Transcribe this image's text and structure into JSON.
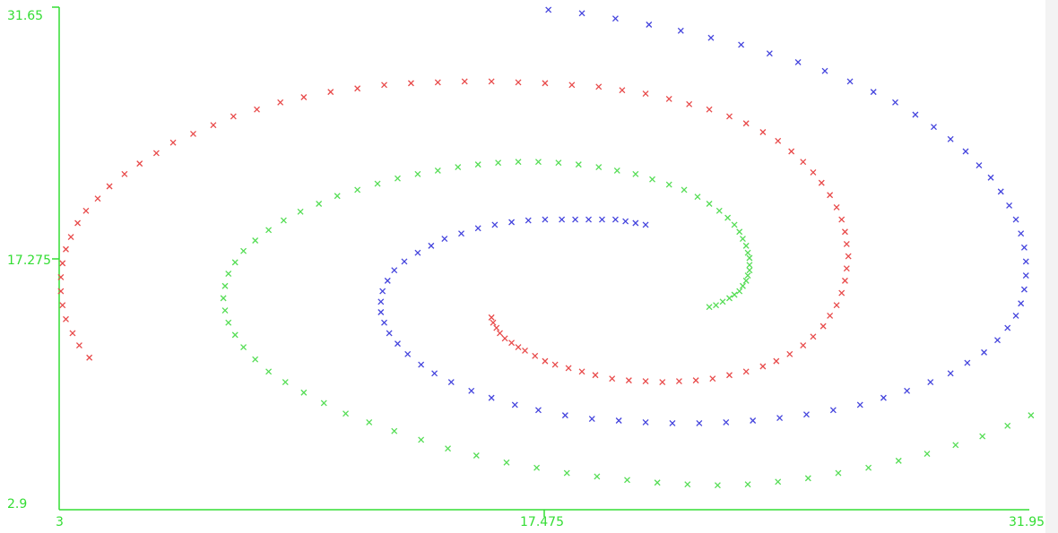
{
  "chart_data": {
    "type": "scatter",
    "title": "",
    "xlabel": "",
    "ylabel": "",
    "xlim": [
      3,
      31.95
    ],
    "ylim": [
      2.9,
      31.65
    ],
    "grid": false,
    "legend": "none",
    "axis_color": "#33dd33",
    "x_ticks": [
      "3",
      "17.475",
      "31.95"
    ],
    "y_ticks": [
      "31.65",
      "17.275",
      "2.9"
    ],
    "marker": "x",
    "series": [
      {
        "color": "#e84a4a",
        "points": [
          [
            15.9,
            13.9
          ],
          [
            15.95,
            13.6
          ],
          [
            16.05,
            13.3
          ],
          [
            16.15,
            13.0
          ],
          [
            16.3,
            12.7
          ],
          [
            16.5,
            12.45
          ],
          [
            16.7,
            12.2
          ],
          [
            16.9,
            12.0
          ],
          [
            17.2,
            11.7
          ],
          [
            17.5,
            11.4
          ],
          [
            17.8,
            11.2
          ],
          [
            18.2,
            11.0
          ],
          [
            18.6,
            10.8
          ],
          [
            19.0,
            10.6
          ],
          [
            19.5,
            10.4
          ],
          [
            20.0,
            10.3
          ],
          [
            20.5,
            10.25
          ],
          [
            21.0,
            10.2
          ],
          [
            21.5,
            10.25
          ],
          [
            22.0,
            10.3
          ],
          [
            22.5,
            10.4
          ],
          [
            23.0,
            10.6
          ],
          [
            23.5,
            10.8
          ],
          [
            24.0,
            11.1
          ],
          [
            24.4,
            11.4
          ],
          [
            24.8,
            11.8
          ],
          [
            25.2,
            12.3
          ],
          [
            25.5,
            12.8
          ],
          [
            25.8,
            13.4
          ],
          [
            26.0,
            14.0
          ],
          [
            26.2,
            14.6
          ],
          [
            26.35,
            15.3
          ],
          [
            26.45,
            16.0
          ],
          [
            26.5,
            16.7
          ],
          [
            26.55,
            17.4
          ],
          [
            26.5,
            18.1
          ],
          [
            26.45,
            18.8
          ],
          [
            26.35,
            19.5
          ],
          [
            26.2,
            20.2
          ],
          [
            26.0,
            20.9
          ],
          [
            25.75,
            21.6
          ],
          [
            25.5,
            22.2
          ],
          [
            25.2,
            22.8
          ],
          [
            24.85,
            23.4
          ],
          [
            24.45,
            24.0
          ],
          [
            24.0,
            24.5
          ],
          [
            23.5,
            25.0
          ],
          [
            23.0,
            25.4
          ],
          [
            22.4,
            25.8
          ],
          [
            21.8,
            26.1
          ],
          [
            21.2,
            26.4
          ],
          [
            20.5,
            26.7
          ],
          [
            19.8,
            26.9
          ],
          [
            19.1,
            27.1
          ],
          [
            18.3,
            27.2
          ],
          [
            17.5,
            27.3
          ],
          [
            16.7,
            27.35
          ],
          [
            15.9,
            27.4
          ],
          [
            15.1,
            27.4
          ],
          [
            14.3,
            27.35
          ],
          [
            13.5,
            27.3
          ],
          [
            12.7,
            27.2
          ],
          [
            11.9,
            27.0
          ],
          [
            11.1,
            26.8
          ],
          [
            10.3,
            26.5
          ],
          [
            9.6,
            26.2
          ],
          [
            8.9,
            25.8
          ],
          [
            8.2,
            25.4
          ],
          [
            7.6,
            24.9
          ],
          [
            7.0,
            24.4
          ],
          [
            6.4,
            23.9
          ],
          [
            5.9,
            23.3
          ],
          [
            5.4,
            22.7
          ],
          [
            4.95,
            22.1
          ],
          [
            4.5,
            21.4
          ],
          [
            4.15,
            20.7
          ],
          [
            3.8,
            20.0
          ],
          [
            3.55,
            19.3
          ],
          [
            3.35,
            18.5
          ],
          [
            3.2,
            17.8
          ],
          [
            3.1,
            17.0
          ],
          [
            3.05,
            16.2
          ],
          [
            3.05,
            15.4
          ],
          [
            3.1,
            14.6
          ],
          [
            3.2,
            13.8
          ],
          [
            3.4,
            13.0
          ],
          [
            3.6,
            12.3
          ],
          [
            3.9,
            11.6
          ]
        ]
      },
      {
        "color": "#4444dd",
        "points": [
          [
            20.5,
            19.2
          ],
          [
            20.2,
            19.3
          ],
          [
            19.9,
            19.4
          ],
          [
            19.6,
            19.5
          ],
          [
            19.2,
            19.5
          ],
          [
            18.8,
            19.5
          ],
          [
            18.4,
            19.5
          ],
          [
            18.0,
            19.5
          ],
          [
            17.5,
            19.5
          ],
          [
            17.0,
            19.45
          ],
          [
            16.5,
            19.35
          ],
          [
            16.0,
            19.2
          ],
          [
            15.5,
            19.0
          ],
          [
            15.0,
            18.7
          ],
          [
            14.5,
            18.4
          ],
          [
            14.1,
            18.0
          ],
          [
            13.7,
            17.6
          ],
          [
            13.3,
            17.1
          ],
          [
            13.0,
            16.6
          ],
          [
            12.8,
            16.0
          ],
          [
            12.65,
            15.4
          ],
          [
            12.6,
            14.8
          ],
          [
            12.6,
            14.2
          ],
          [
            12.7,
            13.6
          ],
          [
            12.85,
            13.0
          ],
          [
            13.1,
            12.4
          ],
          [
            13.4,
            11.8
          ],
          [
            13.8,
            11.2
          ],
          [
            14.2,
            10.7
          ],
          [
            14.7,
            10.2
          ],
          [
            15.3,
            9.7
          ],
          [
            15.9,
            9.3
          ],
          [
            16.6,
            8.9
          ],
          [
            17.3,
            8.6
          ],
          [
            18.1,
            8.3
          ],
          [
            18.9,
            8.1
          ],
          [
            19.7,
            8.0
          ],
          [
            20.5,
            7.9
          ],
          [
            21.3,
            7.85
          ],
          [
            22.1,
            7.85
          ],
          [
            22.9,
            7.9
          ],
          [
            23.7,
            8.0
          ],
          [
            24.5,
            8.15
          ],
          [
            25.3,
            8.35
          ],
          [
            26.1,
            8.6
          ],
          [
            26.9,
            8.9
          ],
          [
            27.6,
            9.3
          ],
          [
            28.3,
            9.7
          ],
          [
            29.0,
            10.2
          ],
          [
            29.6,
            10.7
          ],
          [
            30.1,
            11.3
          ],
          [
            30.6,
            11.9
          ],
          [
            31.0,
            12.6
          ],
          [
            31.3,
            13.3
          ],
          [
            31.55,
            14.0
          ],
          [
            31.7,
            14.7
          ],
          [
            31.8,
            15.5
          ],
          [
            31.85,
            16.3
          ],
          [
            31.85,
            17.1
          ],
          [
            31.8,
            17.9
          ],
          [
            31.7,
            18.7
          ],
          [
            31.55,
            19.5
          ],
          [
            31.35,
            20.3
          ],
          [
            31.1,
            21.1
          ],
          [
            30.8,
            21.9
          ],
          [
            30.45,
            22.6
          ],
          [
            30.05,
            23.4
          ],
          [
            29.6,
            24.1
          ],
          [
            29.1,
            24.8
          ],
          [
            28.55,
            25.5
          ],
          [
            27.95,
            26.2
          ],
          [
            27.3,
            26.8
          ],
          [
            26.6,
            27.4
          ],
          [
            25.85,
            28.0
          ],
          [
            25.05,
            28.5
          ],
          [
            24.2,
            29.0
          ],
          [
            23.35,
            29.5
          ],
          [
            22.45,
            29.9
          ],
          [
            21.55,
            30.3
          ],
          [
            20.6,
            30.65
          ],
          [
            19.6,
            31.0
          ],
          [
            18.6,
            31.3
          ],
          [
            17.6,
            31.5
          ]
        ]
      },
      {
        "color": "#55dd55",
        "points": [
          [
            22.4,
            14.5
          ],
          [
            22.6,
            14.6
          ],
          [
            22.8,
            14.8
          ],
          [
            23.0,
            15.0
          ],
          [
            23.15,
            15.2
          ],
          [
            23.3,
            15.4
          ],
          [
            23.4,
            15.7
          ],
          [
            23.5,
            16.0
          ],
          [
            23.55,
            16.3
          ],
          [
            23.6,
            16.6
          ],
          [
            23.6,
            16.9
          ],
          [
            23.6,
            17.3
          ],
          [
            23.55,
            17.6
          ],
          [
            23.5,
            18.0
          ],
          [
            23.4,
            18.4
          ],
          [
            23.3,
            18.8
          ],
          [
            23.15,
            19.2
          ],
          [
            22.95,
            19.6
          ],
          [
            22.7,
            20.0
          ],
          [
            22.4,
            20.4
          ],
          [
            22.05,
            20.8
          ],
          [
            21.65,
            21.2
          ],
          [
            21.2,
            21.5
          ],
          [
            20.7,
            21.8
          ],
          [
            20.2,
            22.1
          ],
          [
            19.65,
            22.3
          ],
          [
            19.1,
            22.5
          ],
          [
            18.5,
            22.65
          ],
          [
            17.9,
            22.75
          ],
          [
            17.3,
            22.8
          ],
          [
            16.7,
            22.8
          ],
          [
            16.1,
            22.75
          ],
          [
            15.5,
            22.65
          ],
          [
            14.9,
            22.5
          ],
          [
            14.3,
            22.3
          ],
          [
            13.7,
            22.1
          ],
          [
            13.1,
            21.85
          ],
          [
            12.5,
            21.55
          ],
          [
            11.9,
            21.2
          ],
          [
            11.3,
            20.85
          ],
          [
            10.75,
            20.4
          ],
          [
            10.2,
            19.95
          ],
          [
            9.7,
            19.45
          ],
          [
            9.25,
            18.9
          ],
          [
            8.85,
            18.3
          ],
          [
            8.5,
            17.7
          ],
          [
            8.25,
            17.05
          ],
          [
            8.05,
            16.4
          ],
          [
            7.95,
            15.7
          ],
          [
            7.9,
            15.0
          ],
          [
            7.95,
            14.3
          ],
          [
            8.05,
            13.6
          ],
          [
            8.25,
            12.9
          ],
          [
            8.5,
            12.2
          ],
          [
            8.85,
            11.5
          ],
          [
            9.25,
            10.8
          ],
          [
            9.75,
            10.2
          ],
          [
            10.3,
            9.6
          ],
          [
            10.9,
            9.0
          ],
          [
            11.55,
            8.4
          ],
          [
            12.25,
            7.9
          ],
          [
            13.0,
            7.4
          ],
          [
            13.8,
            6.9
          ],
          [
            14.6,
            6.4
          ],
          [
            15.45,
            6.0
          ],
          [
            16.35,
            5.6
          ],
          [
            17.25,
            5.3
          ],
          [
            18.15,
            5.0
          ],
          [
            19.05,
            4.8
          ],
          [
            19.95,
            4.6
          ],
          [
            20.85,
            4.45
          ],
          [
            21.75,
            4.35
          ],
          [
            22.65,
            4.3
          ],
          [
            23.55,
            4.35
          ],
          [
            24.45,
            4.5
          ],
          [
            25.35,
            4.7
          ],
          [
            26.25,
            5.0
          ],
          [
            27.15,
            5.3
          ],
          [
            28.05,
            5.7
          ],
          [
            28.9,
            6.1
          ],
          [
            29.75,
            6.6
          ],
          [
            30.55,
            7.1
          ],
          [
            31.3,
            7.7
          ],
          [
            32.0,
            8.3
          ]
        ]
      }
    ]
  }
}
